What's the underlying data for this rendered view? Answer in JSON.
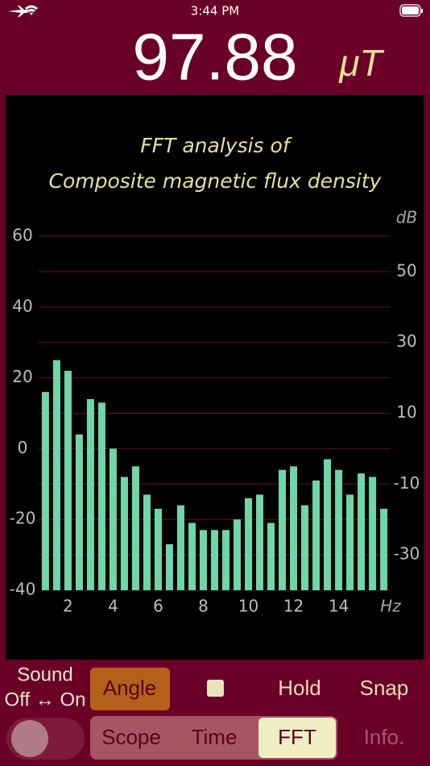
{
  "status_bar": {
    "time": "3:44 PM"
  },
  "reading": {
    "value": "97.88",
    "unit": "μT"
  },
  "chart_data": {
    "type": "bar",
    "title": "FFT analysis of",
    "subtitle": "Composite magnetic flux density",
    "x_label": "Hz",
    "y2_label": "dB",
    "x": [
      1,
      1.5,
      2,
      2.5,
      3,
      3.5,
      4,
      4.5,
      5,
      5.5,
      6,
      6.5,
      7,
      7.5,
      8,
      8.5,
      9,
      9.5,
      10,
      10.5,
      11,
      11.5,
      12,
      12.5,
      13,
      13.5,
      14,
      14.5,
      15,
      15.5,
      16
    ],
    "values": [
      16,
      25,
      22,
      4,
      14,
      13,
      0,
      -8,
      -5,
      -13,
      -17,
      -27,
      -16,
      -21,
      -23,
      -23,
      -23,
      -20,
      -14,
      -13,
      -21,
      -6,
      -5,
      -16,
      -9,
      -3,
      -6,
      -13,
      -7,
      -8,
      -17
    ],
    "color": "#6fd6a8",
    "xlim": [
      0.7,
      16.3
    ],
    "xticks": [
      2,
      4,
      6,
      8,
      10,
      12,
      14
    ],
    "ylim": [
      -40,
      60
    ],
    "yticks": [
      60,
      40,
      20,
      0,
      -20,
      -40
    ],
    "y2lim": [
      -40,
      60
    ],
    "y2ticks": [
      50,
      30,
      10,
      -10,
      -30
    ],
    "grid": true
  },
  "controls": {
    "sound": "Sound",
    "sound_toggle": "Off ↔ On",
    "angle": "Angle",
    "hold": "Hold",
    "snap": "Snap",
    "tabs": [
      "Scope",
      "Time",
      "FFT"
    ],
    "info": "Info."
  }
}
